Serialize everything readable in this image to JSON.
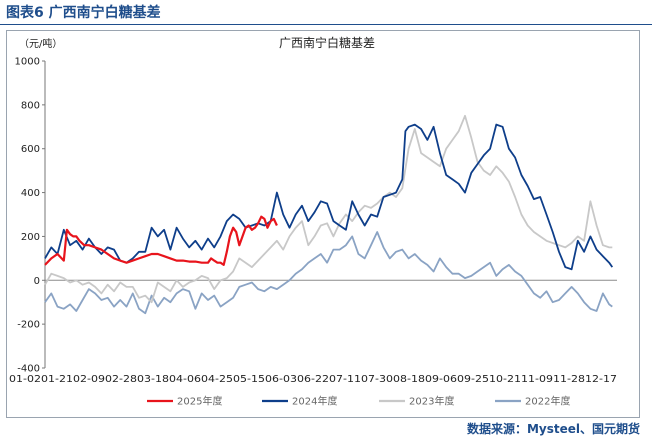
{
  "header": {
    "title": "图表6  广西南宁白糖基差"
  },
  "source": "数据来源：Mysteel、国元期货",
  "chart_data": {
    "type": "line",
    "title": "广西南宁白糖基差",
    "ylabel": "（元/吨）",
    "ylim": [
      -400,
      1000
    ],
    "yticks": [
      -400,
      -200,
      0,
      200,
      400,
      600,
      800,
      1000
    ],
    "xlim": [
      0,
      365
    ],
    "xlabels": [
      "01-02",
      "01-21",
      "02-09",
      "02-28",
      "03-18",
      "04-06",
      "04-25",
      "05-15",
      "06-03",
      "06-22",
      "07-11",
      "07-30",
      "08-18",
      "09-06",
      "09-25",
      "10-21",
      "11-09",
      "11-28",
      "12-17"
    ],
    "legend_position": "bottom",
    "series": [
      {
        "name": "2025年度",
        "color": "#e8141c",
        "width": 2.2,
        "x": [
          0,
          4,
          8,
          12,
          14,
          16,
          18,
          20,
          22,
          25,
          28,
          32,
          36,
          40,
          44,
          48,
          52,
          56,
          60,
          64,
          68,
          72,
          76,
          80,
          84,
          88,
          92,
          96,
          100,
          104,
          106,
          108,
          110,
          112,
          114,
          116,
          118,
          120,
          122,
          124,
          126,
          128,
          130,
          132,
          134,
          136,
          138,
          140,
          142,
          144,
          146,
          148
        ],
        "y": [
          70,
          100,
          120,
          90,
          230,
          210,
          200,
          200,
          180,
          160,
          160,
          150,
          140,
          120,
          100,
          90,
          80,
          90,
          100,
          110,
          120,
          120,
          110,
          100,
          90,
          90,
          85,
          85,
          80,
          80,
          100,
          90,
          80,
          80,
          70,
          130,
          200,
          240,
          220,
          160,
          200,
          240,
          250,
          230,
          240,
          260,
          290,
          280,
          240,
          270,
          280,
          250
        ]
      },
      {
        "name": "2024年度",
        "color": "#0e3e8a",
        "width": 1.8,
        "x": [
          0,
          4,
          8,
          12,
          16,
          20,
          24,
          28,
          32,
          36,
          40,
          44,
          48,
          52,
          56,
          60,
          64,
          68,
          72,
          76,
          80,
          84,
          88,
          92,
          96,
          100,
          104,
          108,
          112,
          116,
          120,
          124,
          128,
          132,
          136,
          140,
          144,
          148,
          152,
          156,
          160,
          164,
          168,
          172,
          176,
          180,
          184,
          188,
          192,
          196,
          200,
          204,
          208,
          212,
          216,
          220,
          224,
          228,
          230,
          232,
          236,
          240,
          244,
          248,
          252,
          256,
          260,
          264,
          268,
          272,
          276,
          280,
          284,
          288,
          292,
          296,
          300,
          304,
          308,
          312,
          316,
          320,
          324,
          328,
          332,
          336,
          340,
          344,
          348,
          352,
          356,
          360,
          362
        ],
        "y": [
          100,
          150,
          120,
          230,
          160,
          180,
          140,
          190,
          150,
          120,
          150,
          140,
          90,
          80,
          100,
          130,
          130,
          240,
          200,
          230,
          140,
          240,
          190,
          150,
          180,
          140,
          190,
          150,
          200,
          270,
          300,
          280,
          240,
          250,
          260,
          250,
          270,
          400,
          300,
          240,
          300,
          340,
          270,
          310,
          360,
          350,
          270,
          250,
          230,
          360,
          300,
          250,
          300,
          290,
          380,
          390,
          400,
          460,
          680,
          700,
          710,
          690,
          640,
          700,
          580,
          480,
          460,
          440,
          400,
          490,
          530,
          570,
          600,
          710,
          700,
          600,
          560,
          480,
          430,
          370,
          380,
          300,
          220,
          130,
          60,
          50,
          180,
          130,
          200,
          140,
          110,
          80,
          60
        ]
      },
      {
        "name": "2023年度",
        "color": "#c8c8c8",
        "width": 1.8,
        "x": [
          0,
          4,
          8,
          12,
          16,
          20,
          24,
          28,
          32,
          36,
          40,
          44,
          48,
          52,
          56,
          60,
          64,
          68,
          72,
          76,
          80,
          84,
          88,
          92,
          96,
          100,
          104,
          108,
          112,
          116,
          120,
          124,
          128,
          132,
          136,
          140,
          144,
          148,
          152,
          156,
          160,
          164,
          168,
          172,
          176,
          180,
          184,
          188,
          192,
          196,
          200,
          204,
          208,
          212,
          216,
          220,
          224,
          228,
          232,
          236,
          240,
          244,
          248,
          252,
          256,
          260,
          264,
          268,
          272,
          276,
          280,
          284,
          288,
          292,
          296,
          300,
          304,
          308,
          312,
          316,
          320,
          324,
          328,
          332,
          336,
          340,
          344,
          348,
          352,
          356,
          360,
          362
        ],
        "y": [
          -20,
          30,
          20,
          10,
          -10,
          0,
          -20,
          -10,
          -30,
          -60,
          -20,
          -50,
          -10,
          -30,
          -30,
          -80,
          -70,
          -100,
          -10,
          -30,
          -50,
          0,
          -30,
          -10,
          0,
          20,
          10,
          -40,
          0,
          10,
          40,
          100,
          80,
          60,
          90,
          120,
          150,
          180,
          140,
          200,
          240,
          270,
          160,
          200,
          250,
          260,
          200,
          260,
          300,
          270,
          310,
          340,
          330,
          350,
          380,
          400,
          380,
          420,
          600,
          690,
          580,
          560,
          540,
          520,
          600,
          640,
          680,
          750,
          650,
          540,
          500,
          480,
          520,
          490,
          450,
          380,
          300,
          250,
          220,
          200,
          180,
          170,
          160,
          150,
          170,
          200,
          180,
          360,
          250,
          160,
          150,
          150
        ]
      },
      {
        "name": "2022年度",
        "color": "#8aa3c4",
        "width": 1.8,
        "x": [
          0,
          4,
          8,
          12,
          16,
          20,
          24,
          28,
          32,
          36,
          40,
          44,
          48,
          52,
          56,
          60,
          64,
          68,
          72,
          76,
          80,
          84,
          88,
          92,
          96,
          100,
          104,
          108,
          112,
          116,
          120,
          124,
          128,
          132,
          136,
          140,
          144,
          148,
          152,
          156,
          160,
          164,
          168,
          172,
          176,
          180,
          184,
          188,
          192,
          196,
          200,
          204,
          208,
          212,
          216,
          220,
          224,
          228,
          232,
          236,
          240,
          244,
          248,
          252,
          256,
          260,
          264,
          268,
          272,
          276,
          280,
          284,
          288,
          292,
          296,
          300,
          304,
          308,
          312,
          316,
          320,
          324,
          328,
          332,
          336,
          340,
          344,
          348,
          352,
          356,
          360,
          362
        ],
        "y": [
          -100,
          -60,
          -120,
          -130,
          -110,
          -140,
          -90,
          -40,
          -60,
          -90,
          -80,
          -120,
          -90,
          -120,
          -60,
          -130,
          -150,
          -70,
          -120,
          -80,
          -100,
          -60,
          -40,
          -50,
          -130,
          -60,
          -90,
          -70,
          -120,
          -100,
          -80,
          -30,
          -20,
          -10,
          -40,
          -50,
          -30,
          -40,
          -20,
          0,
          30,
          50,
          80,
          100,
          120,
          80,
          140,
          140,
          160,
          200,
          120,
          100,
          160,
          220,
          150,
          100,
          130,
          140,
          100,
          120,
          90,
          70,
          40,
          100,
          60,
          30,
          30,
          10,
          20,
          40,
          60,
          80,
          20,
          50,
          70,
          40,
          20,
          -20,
          -60,
          -80,
          -50,
          -100,
          -90,
          -60,
          -30,
          -60,
          -100,
          -130,
          -140,
          -60,
          -110,
          -120
        ]
      }
    ]
  }
}
